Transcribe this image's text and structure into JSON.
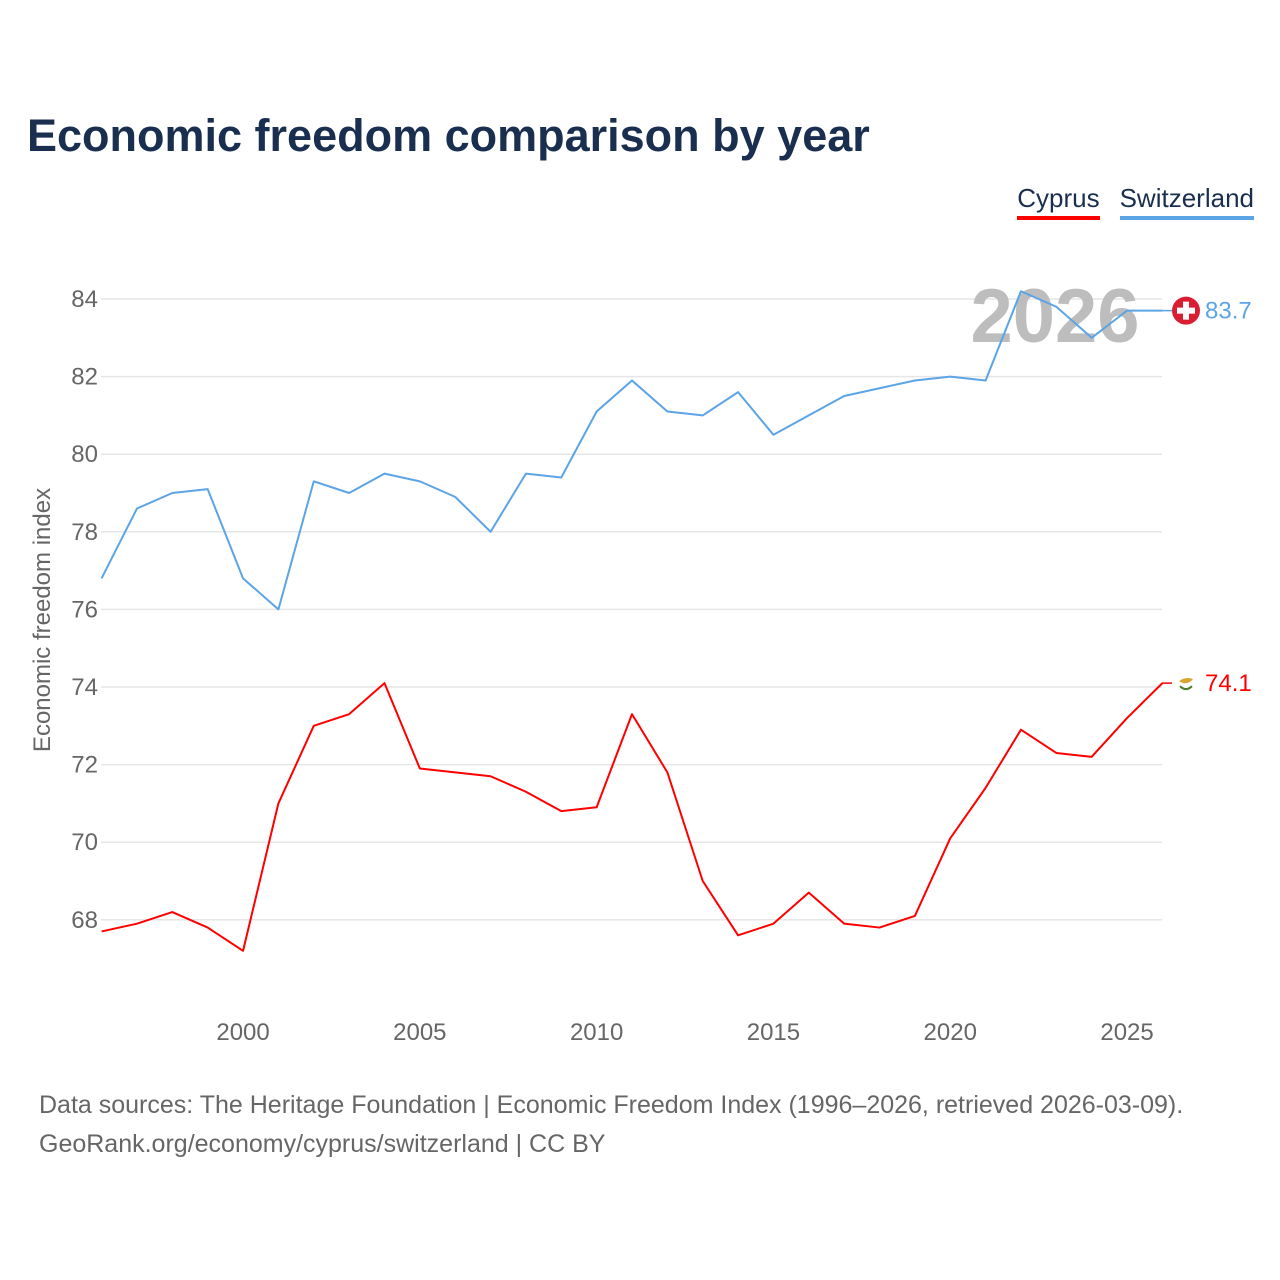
{
  "title": "Economic freedom comparison by year",
  "chart_data": {
    "type": "line",
    "title": "Economic freedom comparison by year",
    "xlabel": "",
    "ylabel": "Economic freedom index",
    "x": [
      1996,
      1997,
      1998,
      1999,
      2000,
      2001,
      2002,
      2003,
      2004,
      2005,
      2006,
      2007,
      2008,
      2009,
      2010,
      2011,
      2012,
      2013,
      2014,
      2015,
      2016,
      2017,
      2018,
      2019,
      2020,
      2021,
      2022,
      2023,
      2024,
      2025,
      2026
    ],
    "xticks": [
      "2000",
      "2005",
      "2010",
      "2015",
      "2020",
      "2025"
    ],
    "yticks": [
      "68",
      "70",
      "72",
      "74",
      "76",
      "78",
      "80",
      "82",
      "84"
    ],
    "ylim": [
      65.9,
      85
    ],
    "grid": true,
    "legend_position": "top-right",
    "year_watermark": "2026",
    "series": [
      {
        "name": "Cyprus",
        "color": "#ff0000",
        "end_label": "74.1",
        "values": [
          67.7,
          67.9,
          68.2,
          67.8,
          67.2,
          71.0,
          73.0,
          73.3,
          74.1,
          71.9,
          71.8,
          71.7,
          71.3,
          70.8,
          70.9,
          73.3,
          71.8,
          69.0,
          67.6,
          67.9,
          68.7,
          67.9,
          67.8,
          68.1,
          70.1,
          71.4,
          72.9,
          72.3,
          72.2,
          73.2,
          74.1
        ]
      },
      {
        "name": "Switzerland",
        "color": "#5ba4e6",
        "end_label": "83.7",
        "values": [
          76.8,
          78.6,
          79.0,
          79.1,
          76.8,
          76.0,
          79.3,
          79.0,
          79.5,
          79.3,
          78.9,
          78.0,
          79.5,
          79.4,
          81.1,
          81.9,
          81.1,
          81.0,
          81.6,
          80.5,
          81.0,
          81.5,
          81.7,
          81.9,
          82.0,
          81.9,
          84.2,
          83.8,
          83.0,
          83.7,
          83.7
        ]
      }
    ]
  },
  "footer": {
    "line1": "Data sources: The Heritage Foundation | Economic Freedom Index (1996–2026, retrieved 2026-03-09).",
    "line2": "GeoRank.org/economy/cyprus/switzerland | CC BY"
  }
}
